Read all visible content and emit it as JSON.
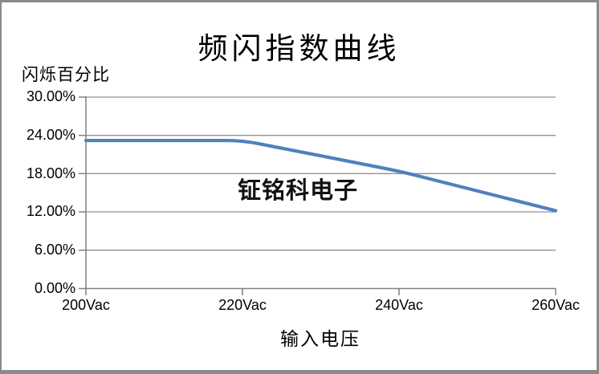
{
  "chart": {
    "title": "频闪指数曲线",
    "y_axis_title": "闪烁百分比",
    "x_axis_title": "输入电压",
    "watermark": "钲铭科电子",
    "y_tick_labels": [
      "30.00%",
      "24.00%",
      "18.00%",
      "12.00%",
      "6.00%",
      "0.00%"
    ],
    "x_tick_labels": [
      "200Vac",
      "220Vac",
      "240Vac",
      "260Vac"
    ],
    "colors": {
      "line": "#4F81BD",
      "grid": "#909090",
      "axis": "#808080",
      "frame": "#8A8A8A",
      "background": "#FFFFFF",
      "text": "#000000"
    }
  },
  "chart_data": {
    "type": "line",
    "title": "频闪指数曲线",
    "xlabel": "输入电压",
    "ylabel": "闪烁百分比",
    "categories": [
      "200Vac",
      "220Vac",
      "240Vac",
      "260Vac"
    ],
    "series": [
      {
        "name": "闪烁百分比",
        "values": [
          23.2,
          23.2,
          18.4,
          12.2
        ]
      }
    ],
    "unit": "%",
    "ylim": [
      0,
      30
    ],
    "y_tick_interval": 6,
    "grid": true,
    "legend_position": "none",
    "line_color": "#4F81BD",
    "smooth": true,
    "watermark": "钲铭科电子"
  }
}
